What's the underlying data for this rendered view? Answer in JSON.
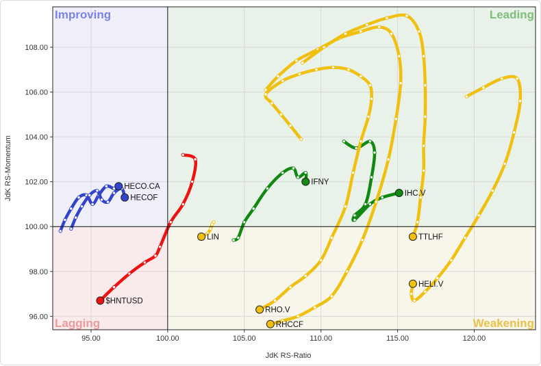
{
  "chart_data": {
    "type": "scatter",
    "xlabel": "JdK RS-Ratio",
    "ylabel": "JdK RS-Momentum",
    "xlim": [
      92.5,
      124.0
    ],
    "ylim": [
      95.4,
      109.8
    ],
    "x_ticks": [
      95,
      100,
      105,
      110,
      115,
      120
    ],
    "y_ticks": [
      96,
      98,
      100,
      102,
      104,
      106,
      108
    ],
    "x_tick_labels": [
      "95.00",
      "100.00",
      "105.00",
      "110.00",
      "115.00",
      "120.00"
    ],
    "y_tick_labels": [
      "96.00",
      "98.00",
      "100.00",
      "102.00",
      "104.00",
      "106.00",
      "108.00"
    ],
    "center": [
      100,
      100
    ],
    "grid": true,
    "quadrants": [
      {
        "label": "Improving",
        "position": "top-left",
        "color": "#7b83e8",
        "bg": "#efeffa"
      },
      {
        "label": "Leading",
        "position": "top-right",
        "color": "#7bbf7b",
        "bg": "#e9f2e9"
      },
      {
        "label": "Lagging",
        "position": "bottom-left",
        "color": "#ee9a9a",
        "bg": "#f9ebeb"
      },
      {
        "label": "Weakening",
        "position": "bottom-right",
        "color": "#e9c24a",
        "bg": "#f8f6eb"
      }
    ],
    "series": [
      {
        "name": "HECO.CA",
        "color": "#3344cc",
        "points": [
          [
            93.0,
            99.8
          ],
          [
            93.3,
            100.3
          ],
          [
            93.7,
            100.8
          ],
          [
            94.2,
            101.3
          ],
          [
            94.7,
            101.4
          ],
          [
            95.1,
            101.0
          ],
          [
            95.5,
            101.4
          ],
          [
            96.0,
            101.8
          ],
          [
            96.5,
            101.7
          ],
          [
            96.8,
            101.8
          ]
        ]
      },
      {
        "name": "HECOF",
        "color": "#3344cc",
        "points": [
          [
            93.7,
            99.9
          ],
          [
            94.0,
            100.4
          ],
          [
            94.4,
            100.9
          ],
          [
            94.9,
            101.4
          ],
          [
            95.4,
            101.6
          ],
          [
            95.7,
            101.2
          ],
          [
            96.1,
            101.1
          ],
          [
            96.5,
            101.5
          ],
          [
            97.0,
            101.7
          ],
          [
            97.2,
            101.3
          ]
        ]
      },
      {
        "name": "$HNTUSD",
        "color": "#ee1111",
        "points": [
          [
            101.0,
            103.2
          ],
          [
            101.8,
            103.0
          ],
          [
            101.6,
            102.0
          ],
          [
            101.0,
            101.0
          ],
          [
            100.2,
            100.2
          ],
          [
            99.5,
            99.1
          ],
          [
            99.2,
            98.7
          ],
          [
            98.5,
            98.4
          ],
          [
            97.5,
            97.9
          ],
          [
            96.5,
            97.3
          ],
          [
            95.6,
            96.7
          ]
        ]
      },
      {
        "name": "IFNY",
        "color": "#118811",
        "points": [
          [
            104.3,
            99.4
          ],
          [
            104.6,
            99.5
          ],
          [
            105.0,
            100.2
          ],
          [
            105.6,
            100.8
          ],
          [
            106.5,
            101.7
          ],
          [
            107.5,
            102.4
          ],
          [
            108.2,
            102.6
          ],
          [
            108.5,
            102.2
          ],
          [
            109.0,
            102.4
          ],
          [
            109.0,
            102.0
          ]
        ]
      },
      {
        "name": "IHC.V",
        "color": "#118811",
        "points": [
          [
            111.5,
            103.8
          ],
          [
            112.3,
            103.5
          ],
          [
            113.2,
            103.8
          ],
          [
            113.5,
            103.3
          ],
          [
            113.3,
            102.2
          ],
          [
            112.9,
            101.0
          ],
          [
            112.2,
            100.5
          ],
          [
            112.2,
            100.3
          ],
          [
            113.2,
            101.0
          ],
          [
            114.0,
            101.3
          ],
          [
            115.1,
            101.5
          ]
        ]
      },
      {
        "name": "LIN",
        "color": "#f0c010",
        "points": [
          [
            103.0,
            100.2
          ],
          [
            102.9,
            100.1
          ],
          [
            102.8,
            99.9
          ],
          [
            102.6,
            99.7
          ],
          [
            102.2,
            99.55
          ]
        ]
      },
      {
        "name": "RHO.V",
        "color": "#f0c010",
        "points": [
          [
            108.7,
            103.9
          ],
          [
            108.0,
            104.5
          ],
          [
            107.4,
            105.0
          ],
          [
            106.8,
            105.5
          ],
          [
            106.4,
            105.9
          ],
          [
            107.5,
            106.5
          ],
          [
            108.6,
            106.8
          ],
          [
            109.7,
            107.0
          ],
          [
            110.8,
            107.1
          ],
          [
            111.8,
            107.0
          ],
          [
            112.6,
            106.7
          ],
          [
            113.2,
            106.3
          ],
          [
            113.3,
            105.7
          ],
          [
            113.1,
            104.9
          ],
          [
            112.6,
            103.8
          ],
          [
            112.1,
            102.4
          ],
          [
            111.6,
            100.9
          ],
          [
            110.7,
            99.5
          ],
          [
            110.0,
            98.5
          ],
          [
            109.0,
            97.8
          ],
          [
            108.0,
            97.3
          ],
          [
            107.0,
            96.7
          ],
          [
            106.0,
            96.3
          ]
        ]
      },
      {
        "name": "RHCCF",
        "color": "#f0c010",
        "points": [
          [
            106.4,
            106.1
          ],
          [
            107.2,
            106.7
          ],
          [
            108.4,
            107.4
          ],
          [
            109.8,
            107.9
          ],
          [
            111.2,
            108.4
          ],
          [
            112.6,
            108.7
          ],
          [
            113.8,
            108.9
          ],
          [
            114.6,
            108.6
          ],
          [
            115.1,
            107.6
          ],
          [
            115.2,
            106.4
          ],
          [
            114.9,
            104.8
          ],
          [
            114.4,
            103.0
          ],
          [
            113.6,
            101.1
          ],
          [
            112.7,
            99.4
          ],
          [
            111.7,
            98.0
          ],
          [
            110.7,
            96.9
          ],
          [
            109.6,
            96.4
          ],
          [
            108.5,
            96.0
          ],
          [
            107.5,
            95.8
          ],
          [
            106.7,
            95.65
          ]
        ]
      },
      {
        "name": "TTLHF",
        "color": "#f0c010",
        "points": [
          [
            108.8,
            107.3
          ],
          [
            110.2,
            108.0
          ],
          [
            111.6,
            108.6
          ],
          [
            113.0,
            109.0
          ],
          [
            114.3,
            109.3
          ],
          [
            115.6,
            109.4
          ],
          [
            116.4,
            108.7
          ],
          [
            116.7,
            107.6
          ],
          [
            116.8,
            106.3
          ],
          [
            116.8,
            104.9
          ],
          [
            116.7,
            103.6
          ],
          [
            116.7,
            102.5
          ],
          [
            116.5,
            101.3
          ],
          [
            116.3,
            100.2
          ],
          [
            116.0,
            99.55
          ]
        ]
      },
      {
        "name": "HELI.V",
        "color": "#f0c010",
        "points": [
          [
            119.5,
            105.8
          ],
          [
            120.6,
            106.2
          ],
          [
            121.8,
            106.6
          ],
          [
            122.8,
            106.6
          ],
          [
            123.0,
            105.6
          ],
          [
            122.6,
            104.2
          ],
          [
            122.0,
            102.8
          ],
          [
            121.2,
            101.6
          ],
          [
            120.3,
            100.5
          ],
          [
            119.4,
            99.5
          ],
          [
            118.5,
            98.5
          ],
          [
            117.6,
            97.7
          ],
          [
            116.8,
            97.1
          ],
          [
            116.1,
            96.7
          ],
          [
            115.9,
            97.0
          ],
          [
            116.0,
            97.45
          ]
        ]
      }
    ],
    "labels": [
      {
        "series": "HECO.CA",
        "text": "HECO.CA"
      },
      {
        "series": "HECOF",
        "text": "HECOF"
      },
      {
        "series": "$HNTUSD",
        "text": "$HNTUSD"
      },
      {
        "series": "IFNY",
        "text": "IFNY"
      },
      {
        "series": "IHC.V",
        "text": "IHC.V"
      },
      {
        "series": "LIN",
        "text": "LIN"
      },
      {
        "series": "RHO.V",
        "text": "RHO.V"
      },
      {
        "series": "RHCCF",
        "text": "RHCCF"
      },
      {
        "series": "TTLHF",
        "text": "TTLHF"
      },
      {
        "series": "HELI.V",
        "text": "HELI.V"
      }
    ]
  }
}
